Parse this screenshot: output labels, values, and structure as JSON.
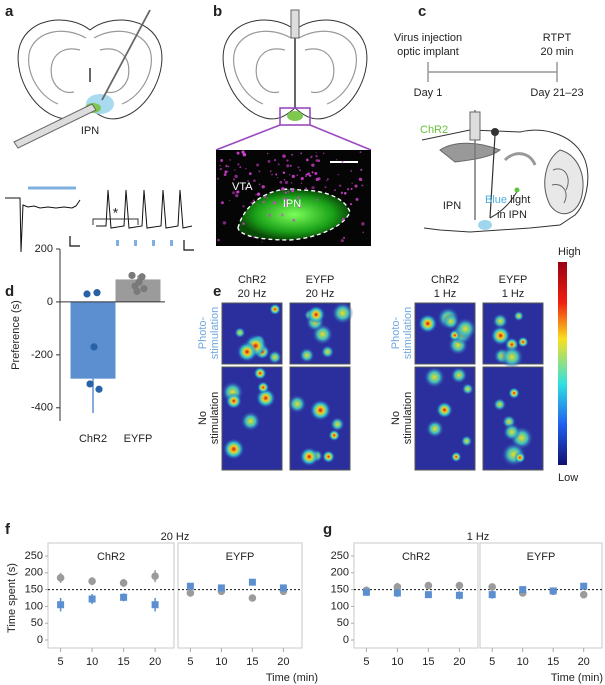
{
  "panel_a": {
    "letter": "a",
    "region": "IPN"
  },
  "panel_b": {
    "letter": "b",
    "regions": [
      "VTA",
      "IPN"
    ]
  },
  "panel_c": {
    "letter": "c",
    "start_note": [
      "Virus injection",
      "optic implant"
    ],
    "start_day": "Day 1",
    "end_note": [
      "RTPT",
      "20 min"
    ],
    "end_day": "Day 21–23",
    "opsin": "ChR2",
    "region": "IPN",
    "light_word": "Blue",
    "light_lines": [
      "light",
      "in IPN"
    ]
  },
  "panel_e": {
    "letter": "e",
    "columns": [
      [
        "ChR2",
        "20 Hz"
      ],
      [
        "EYFP",
        "20 Hz"
      ],
      [
        "ChR2",
        "1 Hz"
      ],
      [
        "EYFP",
        "1 Hz"
      ]
    ],
    "stim_label": [
      "Photo-",
      "stimulation"
    ],
    "nostim_label": [
      "No",
      "stimulation"
    ],
    "scale_high": "High",
    "scale_low": "Low"
  },
  "panel_f": {
    "letter": "f",
    "title": "20 Hz",
    "xlabel": "Time (min)",
    "ylabel": "Time spent (s)"
  },
  "panel_g": {
    "letter": "g",
    "title": "1 Hz",
    "xlabel": "Time (min)"
  },
  "chart_data": [
    {
      "type": "bar",
      "panel_letter": "d",
      "ylabel": "Preference (s)",
      "categories": [
        "ChR2",
        "EYFP"
      ],
      "values": [
        -290,
        85
      ],
      "errors": [
        130,
        15
      ],
      "colors": [
        "#5b8fd0",
        "#9b9b9b"
      ],
      "point_colors": [
        "#2a62a8",
        "#7a7a7a"
      ],
      "points": [
        [
          30,
          35,
          -170,
          -310,
          -330
        ],
        [
          100,
          95,
          75,
          60,
          50,
          40
        ]
      ],
      "ylim": [
        -450,
        200
      ],
      "yticks": [
        -400,
        -200,
        0,
        200
      ],
      "significance": "*"
    },
    {
      "type": "errorbar",
      "title": "ChR2",
      "x": [
        5,
        10,
        15,
        20
      ],
      "xlim": [
        3,
        23
      ],
      "xticks": [
        5,
        10,
        15,
        20
      ],
      "ylim": [
        0,
        250
      ],
      "yticks": [
        0,
        50,
        100,
        150,
        200,
        250
      ],
      "reference_line": 150,
      "series": [
        {
          "color": "#9b9b9b",
          "marker": "circle",
          "values": [
            185,
            175,
            170,
            190
          ],
          "errors": [
            15,
            12,
            12,
            18
          ]
        },
        {
          "color": "#5b8fd0",
          "marker": "square",
          "values": [
            105,
            122,
            127,
            105
          ],
          "errors": [
            20,
            15,
            12,
            20
          ]
        }
      ]
    },
    {
      "type": "errorbar",
      "title": "EYFP",
      "x": [
        5,
        10,
        15,
        20
      ],
      "xlim": [
        3,
        23
      ],
      "xticks": [
        5,
        10,
        15,
        20
      ],
      "ylim": [
        0,
        250
      ],
      "reference_line": 150,
      "series": [
        {
          "color": "#9b9b9b",
          "marker": "circle",
          "values": [
            140,
            145,
            125,
            145
          ],
          "errors": [
            8,
            8,
            10,
            8
          ]
        },
        {
          "color": "#5b8fd0",
          "marker": "square",
          "values": [
            160,
            155,
            172,
            155
          ],
          "errors": [
            8,
            8,
            8,
            8
          ]
        }
      ]
    },
    {
      "type": "errorbar",
      "title": "ChR2",
      "x": [
        5,
        10,
        15,
        20
      ],
      "xlim": [
        3,
        23
      ],
      "xticks": [
        5,
        10,
        15,
        20
      ],
      "ylim": [
        0,
        250
      ],
      "yticks": [
        0,
        50,
        100,
        150,
        200,
        250
      ],
      "reference_line": 150,
      "series": [
        {
          "color": "#9b9b9b",
          "marker": "circle",
          "values": [
            148,
            158,
            162,
            162
          ],
          "errors": [
            10,
            12,
            10,
            10
          ]
        },
        {
          "color": "#5b8fd0",
          "marker": "square",
          "values": [
            142,
            140,
            135,
            133
          ],
          "errors": [
            10,
            12,
            10,
            12
          ]
        }
      ]
    },
    {
      "type": "errorbar",
      "title": "EYFP",
      "x": [
        5,
        10,
        15,
        20
      ],
      "xlim": [
        3,
        23
      ],
      "xticks": [
        5,
        10,
        15,
        20
      ],
      "ylim": [
        0,
        250
      ],
      "reference_line": 150,
      "series": [
        {
          "color": "#9b9b9b",
          "marker": "circle",
          "values": [
            158,
            140,
            145,
            135
          ],
          "errors": [
            10,
            10,
            8,
            10
          ]
        },
        {
          "color": "#5b8fd0",
          "marker": "square",
          "values": [
            135,
            150,
            146,
            160
          ],
          "errors": [
            12,
            8,
            8,
            10
          ]
        }
      ]
    }
  ]
}
